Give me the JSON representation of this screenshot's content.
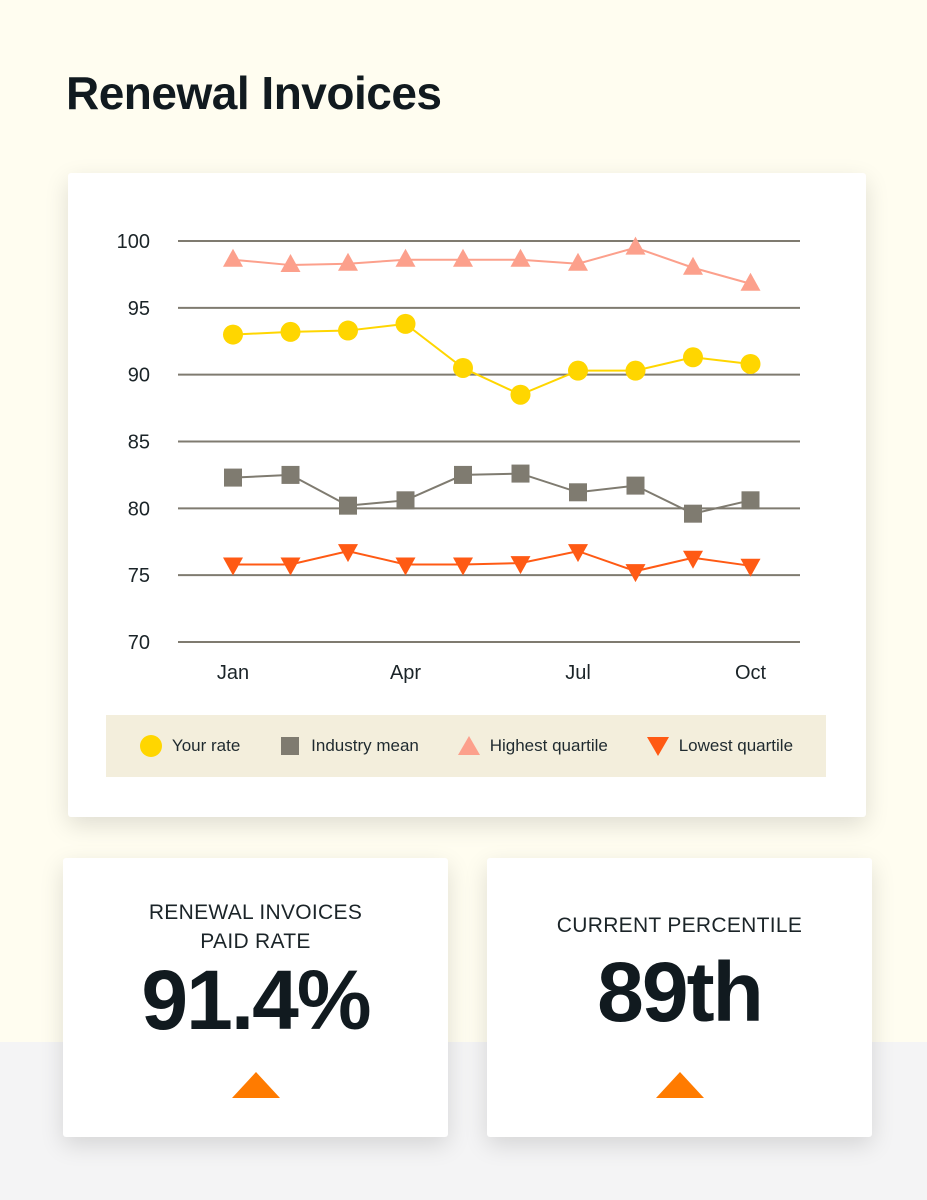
{
  "title": "Renewal Invoices",
  "chart_data": {
    "type": "line",
    "x": [
      "Jan",
      "Feb",
      "Mar",
      "Apr",
      "May",
      "Jun",
      "Jul",
      "Aug",
      "Sep",
      "Oct"
    ],
    "xtick_labels": [
      "Jan",
      "Apr",
      "Jul",
      "Oct"
    ],
    "yticks": [
      70,
      75,
      80,
      85,
      90,
      95,
      100
    ],
    "ylim": [
      70,
      100
    ],
    "grid": true,
    "legend_position": "bottom",
    "series": [
      {
        "name": "Your rate",
        "marker": "circle",
        "color": "#ffd600",
        "values": [
          93.0,
          93.2,
          93.3,
          93.8,
          90.5,
          88.5,
          90.3,
          90.3,
          91.3,
          90.8
        ]
      },
      {
        "name": "Industry mean",
        "marker": "square",
        "color": "#7f7b70",
        "values": [
          82.3,
          82.5,
          80.2,
          80.6,
          82.5,
          82.6,
          81.2,
          81.7,
          79.6,
          80.6
        ]
      },
      {
        "name": "Highest quartile",
        "marker": "triangle-up",
        "color": "#fca08c",
        "values": [
          98.6,
          98.2,
          98.3,
          98.6,
          98.6,
          98.6,
          98.3,
          99.5,
          98.0,
          96.8
        ]
      },
      {
        "name": "Lowest quartile",
        "marker": "triangle-down",
        "color": "#ff5a14",
        "values": [
          75.8,
          75.8,
          76.8,
          75.8,
          75.8,
          75.9,
          76.8,
          75.3,
          76.3,
          75.7
        ]
      }
    ]
  },
  "stats": [
    {
      "label_line1": "RENEWAL INVOICES",
      "label_line2": "PAID RATE",
      "value": "91.4%",
      "trend": "up"
    },
    {
      "label_line1": "CURRENT PERCENTILE",
      "value": "89th",
      "trend": "up"
    }
  ],
  "colors": {
    "trend_up": "#ff7b00",
    "page_bg": "#fffdf0",
    "legend_bg": "#f3eedc"
  }
}
